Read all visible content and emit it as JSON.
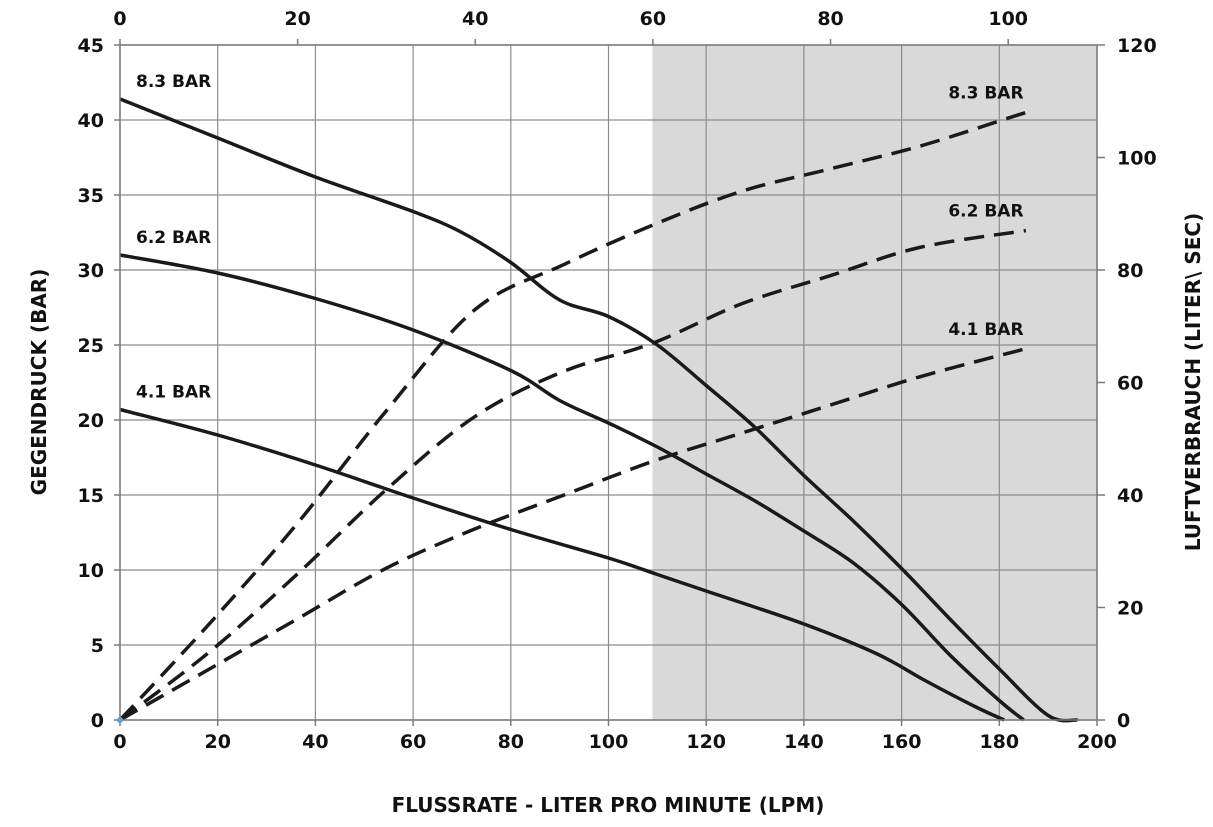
{
  "chart_data": {
    "type": "line",
    "xlabel": "FLUSSRATE - LITER PRO MINUTE (LPM)",
    "ylabel": "GEGENDRUCK (BAR)",
    "y2label": "LUFTVERBRAUCH (LITER\\ SEC)",
    "xlim": [
      0,
      200
    ],
    "ylim": [
      0,
      45
    ],
    "x2lim": [
      0,
      110
    ],
    "y2lim": [
      0,
      120
    ],
    "x_ticks": [
      "0",
      "20",
      "40",
      "60",
      "80",
      "100",
      "120",
      "140",
      "160",
      "180",
      "200"
    ],
    "y_ticks": [
      "0",
      "5",
      "10",
      "15",
      "20",
      "25",
      "30",
      "35",
      "40",
      "45"
    ],
    "x2_ticks": [
      "0",
      "20",
      "40",
      "60",
      "80",
      "100"
    ],
    "y2_ticks": [
      "0",
      "20",
      "40",
      "60",
      "80",
      "100",
      "120"
    ],
    "grid": true,
    "shaded_region": {
      "x_from": 109,
      "x_to": 200,
      "color": "#d9d9d9"
    },
    "series": [
      {
        "name": "8.3 BAR",
        "axis": "primary",
        "style": "solid",
        "points": [
          [
            0,
            41.4
          ],
          [
            20,
            38.8
          ],
          [
            40,
            36.2
          ],
          [
            60,
            33.9
          ],
          [
            70,
            32.5
          ],
          [
            80,
            30.5
          ],
          [
            90,
            28.0
          ],
          [
            100,
            26.9
          ],
          [
            110,
            25.0
          ],
          [
            120,
            22.3
          ],
          [
            130,
            19.5
          ],
          [
            140,
            16.3
          ],
          [
            150,
            13.3
          ],
          [
            160,
            10.1
          ],
          [
            170,
            6.7
          ],
          [
            180,
            3.4
          ],
          [
            190,
            0.3
          ],
          [
            196,
            0
          ]
        ]
      },
      {
        "name": "6.2 BAR",
        "axis": "primary",
        "style": "solid",
        "points": [
          [
            0,
            31.0
          ],
          [
            20,
            29.8
          ],
          [
            40,
            28.1
          ],
          [
            60,
            26.0
          ],
          [
            80,
            23.3
          ],
          [
            90,
            21.3
          ],
          [
            100,
            19.8
          ],
          [
            110,
            18.2
          ],
          [
            120,
            16.4
          ],
          [
            130,
            14.6
          ],
          [
            140,
            12.6
          ],
          [
            150,
            10.5
          ],
          [
            160,
            7.7
          ],
          [
            170,
            4.3
          ],
          [
            180,
            1.3
          ],
          [
            185,
            0
          ]
        ]
      },
      {
        "name": "4.1 BAR",
        "axis": "primary",
        "style": "solid",
        "points": [
          [
            0,
            20.7
          ],
          [
            20,
            19.0
          ],
          [
            40,
            17.0
          ],
          [
            60,
            14.8
          ],
          [
            80,
            12.7
          ],
          [
            100,
            10.8
          ],
          [
            110,
            9.7
          ],
          [
            120,
            8.6
          ],
          [
            140,
            6.4
          ],
          [
            155,
            4.4
          ],
          [
            165,
            2.6
          ],
          [
            175,
            0.9
          ],
          [
            181,
            0
          ]
        ]
      },
      {
        "name": "8.3 BAR",
        "axis": "secondary",
        "style": "dashed",
        "points": [
          [
            0,
            0
          ],
          [
            10,
            17
          ],
          [
            20,
            35
          ],
          [
            30,
            55
          ],
          [
            40,
            73
          ],
          [
            50,
            81
          ],
          [
            60,
            88
          ],
          [
            70,
            94
          ],
          [
            80,
            98
          ],
          [
            90,
            102
          ],
          [
            100,
            107
          ],
          [
            102,
            108
          ]
        ]
      },
      {
        "name": "6.2 BAR",
        "axis": "secondary",
        "style": "dashed",
        "points": [
          [
            0,
            0
          ],
          [
            10,
            12
          ],
          [
            20,
            26
          ],
          [
            30,
            41
          ],
          [
            40,
            54
          ],
          [
            50,
            62
          ],
          [
            60,
            67
          ],
          [
            70,
            74
          ],
          [
            80,
            79
          ],
          [
            90,
            84
          ],
          [
            102,
            87
          ]
        ]
      },
      {
        "name": "4.1 BAR",
        "axis": "secondary",
        "style": "dashed",
        "points": [
          [
            0,
            0
          ],
          [
            10,
            9
          ],
          [
            20,
            18
          ],
          [
            30,
            27
          ],
          [
            40,
            34
          ],
          [
            50,
            40
          ],
          [
            60,
            46
          ],
          [
            70,
            51
          ],
          [
            80,
            56
          ],
          [
            90,
            61
          ],
          [
            102,
            66
          ]
        ]
      }
    ]
  }
}
